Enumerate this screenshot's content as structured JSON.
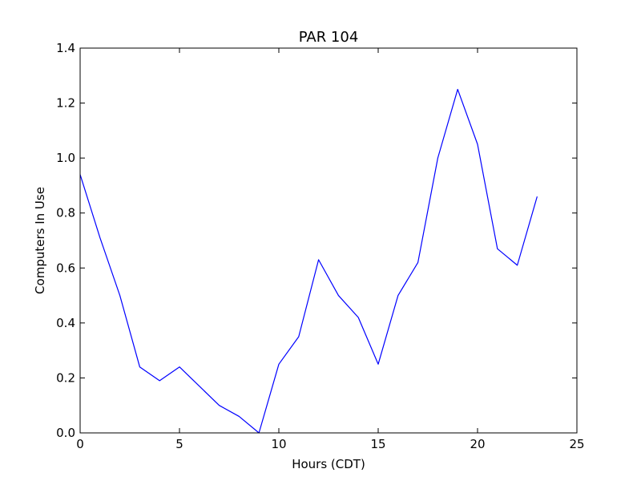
{
  "chart_data": {
    "type": "line",
    "title": "PAR 104",
    "xlabel": "Hours (CDT)",
    "ylabel": "Computers In Use",
    "xlim": [
      0,
      25
    ],
    "ylim": [
      0,
      1.4
    ],
    "x_ticks": [
      0,
      5,
      10,
      15,
      20,
      25
    ],
    "y_ticks": [
      0.0,
      0.2,
      0.4,
      0.6,
      0.8,
      1.0,
      1.2,
      1.4
    ],
    "x_tick_labels": [
      "0",
      "5",
      "10",
      "15",
      "20",
      "25"
    ],
    "y_tick_labels": [
      "0.0",
      "0.2",
      "0.4",
      "0.6",
      "0.8",
      "1.0",
      "1.2",
      "1.4"
    ],
    "grid": false,
    "series": [
      {
        "color": "#0000ff",
        "x": [
          0,
          1,
          2,
          3,
          4,
          5,
          6,
          7,
          8,
          9,
          10,
          11,
          12,
          13,
          14,
          15,
          16,
          17,
          18,
          19,
          20,
          21,
          22,
          23
        ],
        "y": [
          0.94,
          0.71,
          0.5,
          0.24,
          0.19,
          0.24,
          0.17,
          0.1,
          0.06,
          0.0,
          0.25,
          0.35,
          0.63,
          0.5,
          0.42,
          0.25,
          0.5,
          0.62,
          1.0,
          1.25,
          1.05,
          0.67,
          0.61,
          0.86
        ]
      }
    ]
  }
}
